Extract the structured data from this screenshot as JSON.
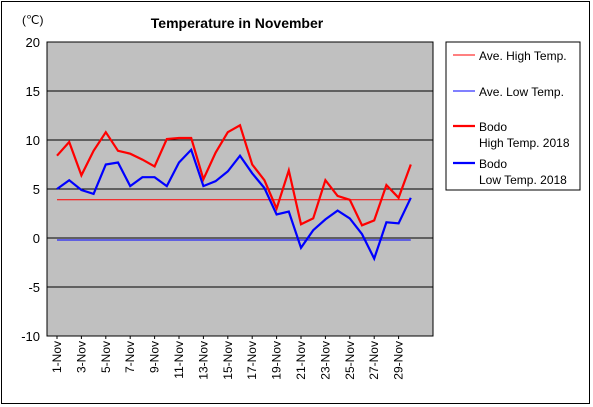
{
  "chart_data": {
    "type": "line",
    "title": "Temperature in November",
    "unit_label": "(℃)",
    "ylim": [
      -10,
      20
    ],
    "yticks": [
      -10,
      -5,
      0,
      5,
      10,
      15,
      20
    ],
    "grid": true,
    "legend_position": "right",
    "x_tick_labels": [
      "1-Nov",
      "3-Nov",
      "5-Nov",
      "7-Nov",
      "9-Nov",
      "11-Nov",
      "13-Nov",
      "15-Nov",
      "17-Nov",
      "19-Nov",
      "21-Nov",
      "23-Nov",
      "25-Nov",
      "27-Nov",
      "29-Nov"
    ],
    "days": 30,
    "series": [
      {
        "name": "Ave. High Temp.",
        "color": "#ff0000",
        "style": "thin",
        "values": [
          3.9,
          3.9,
          3.9,
          3.9,
          3.9,
          3.9,
          3.9,
          3.9,
          3.9,
          3.9,
          3.9,
          3.9,
          3.9,
          3.9,
          3.9,
          3.9,
          3.9,
          3.9,
          3.9,
          3.9,
          3.9,
          3.9,
          3.9,
          3.9,
          3.9,
          3.9,
          3.9,
          3.9,
          3.9,
          3.9
        ]
      },
      {
        "name": "Ave. Low Temp.",
        "color": "#0000ff",
        "style": "thin",
        "values": [
          -0.2,
          -0.2,
          -0.2,
          -0.2,
          -0.2,
          -0.2,
          -0.2,
          -0.2,
          -0.2,
          -0.2,
          -0.2,
          -0.2,
          -0.2,
          -0.2,
          -0.2,
          -0.2,
          -0.2,
          -0.2,
          -0.2,
          -0.2,
          -0.2,
          -0.2,
          -0.2,
          -0.2,
          -0.2,
          -0.2,
          -0.2,
          -0.2,
          -0.2,
          -0.2
        ]
      },
      {
        "name": "Bodo High Temp. 2018",
        "name_lines": [
          "Bodo",
          "High Temp. 2018"
        ],
        "color": "#ff0000",
        "style": "thick",
        "values": [
          8.4,
          9.8,
          6.4,
          8.9,
          10.8,
          8.9,
          8.6,
          8.0,
          7.3,
          10.1,
          10.2,
          10.2,
          6.0,
          8.7,
          10.8,
          11.5,
          7.5,
          5.9,
          3.0,
          6.9,
          1.4,
          2.0,
          5.9,
          4.3,
          3.9,
          1.3,
          1.8,
          5.4,
          4.1,
          7.5
        ]
      },
      {
        "name": "Bodo Low Temp. 2018",
        "name_lines": [
          "Bodo",
          "Low Temp. 2018"
        ],
        "color": "#0000ff",
        "style": "thick",
        "values": [
          5.0,
          5.9,
          4.9,
          4.5,
          7.5,
          7.7,
          5.3,
          6.2,
          6.2,
          5.3,
          7.7,
          9.0,
          5.3,
          5.8,
          6.8,
          8.4,
          6.6,
          5.1,
          2.4,
          2.7,
          -1.0,
          0.8,
          1.9,
          2.8,
          2.0,
          0.4,
          -2.1,
          1.6,
          1.5,
          4.1
        ]
      }
    ]
  }
}
